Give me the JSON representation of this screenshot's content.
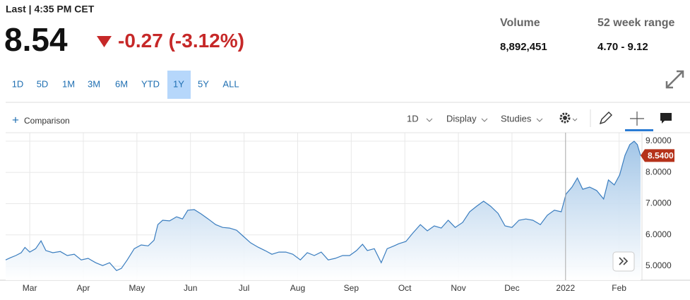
{
  "header": {
    "last_label": "Last | 4:35 PM CET",
    "price": "8.54",
    "change": "-0.27",
    "change_pct": "(-3.12%)",
    "volume_label": "Volume",
    "volume": "8,892,451",
    "range_label": "52 week range",
    "range": "4.70 - 9.12"
  },
  "toolbar": {
    "ranges": [
      "1D",
      "5D",
      "1M",
      "3M",
      "6M",
      "YTD",
      "1Y",
      "5Y",
      "ALL"
    ],
    "comparison": "Comparison",
    "interval": "1D",
    "display": "Display",
    "studies": "Studies"
  },
  "chart_data": {
    "type": "area",
    "color": "#3a7dbf",
    "x": [
      -0.45,
      -0.36,
      -0.26,
      -0.16,
      -0.09,
      0,
      0.11,
      0.21,
      0.3,
      0.43,
      0.57,
      0.7,
      0.83,
      0.96,
      1.09,
      1.23,
      1.36,
      1.49,
      1.62,
      1.71,
      1.82,
      1.95,
      2.08,
      2.21,
      2.32,
      2.39,
      2.48,
      2.61,
      2.74,
      2.85,
      2.95,
      3.07,
      3.2,
      3.33,
      3.47,
      3.6,
      3.73,
      3.86,
      3.99,
      4.12,
      4.26,
      4.39,
      4.52,
      4.65,
      4.78,
      4.91,
      5.05,
      5.18,
      5.31,
      5.44,
      5.57,
      5.7,
      5.84,
      5.97,
      6.1,
      6.21,
      6.3,
      6.43,
      6.56,
      6.67,
      6.8,
      6.89,
      7.02,
      7.15,
      7.29,
      7.42,
      7.55,
      7.68,
      7.81,
      7.94,
      8.08,
      8.21,
      8.34,
      8.47,
      8.6,
      8.74,
      8.87,
      9.0,
      9.13,
      9.26,
      9.39,
      9.53,
      9.66,
      9.79,
      9.92,
      10.01,
      10.12,
      10.22,
      10.32,
      10.45,
      10.58,
      10.71,
      10.8,
      10.91,
      11.01,
      11.11,
      11.2,
      11.28,
      11.34,
      11.4
    ],
    "values": [
      5.2,
      5.27,
      5.34,
      5.43,
      5.6,
      5.45,
      5.56,
      5.81,
      5.5,
      5.43,
      5.47,
      5.34,
      5.38,
      5.2,
      5.25,
      5.11,
      5.02,
      5.11,
      4.86,
      4.93,
      5.2,
      5.56,
      5.68,
      5.65,
      5.83,
      6.33,
      6.47,
      6.45,
      6.58,
      6.51,
      6.79,
      6.81,
      6.67,
      6.51,
      6.33,
      6.24,
      6.22,
      6.15,
      5.95,
      5.75,
      5.61,
      5.5,
      5.38,
      5.45,
      5.45,
      5.38,
      5.2,
      5.43,
      5.34,
      5.45,
      5.2,
      5.25,
      5.34,
      5.34,
      5.5,
      5.7,
      5.5,
      5.56,
      5.11,
      5.56,
      5.65,
      5.72,
      5.79,
      6.06,
      6.33,
      6.13,
      6.29,
      6.22,
      6.47,
      6.24,
      6.4,
      6.74,
      6.92,
      7.08,
      6.92,
      6.69,
      6.29,
      6.24,
      6.47,
      6.51,
      6.47,
      6.33,
      6.63,
      6.79,
      6.74,
      7.31,
      7.53,
      7.82,
      7.46,
      7.53,
      7.42,
      7.15,
      7.76,
      7.6,
      7.92,
      8.55,
      8.89,
      9.0,
      8.89,
      8.54
    ],
    "xlim": [
      -0.45,
      11.4
    ],
    "ylim": [
      4.55,
      9.27
    ],
    "xticks": [
      {
        "value": 0,
        "label": "Mar"
      },
      {
        "value": 1,
        "label": "Apr"
      },
      {
        "value": 2,
        "label": "May"
      },
      {
        "value": 3,
        "label": "Jun"
      },
      {
        "value": 4,
        "label": "Jul"
      },
      {
        "value": 5,
        "label": "Aug"
      },
      {
        "value": 6,
        "label": "Sep"
      },
      {
        "value": 7,
        "label": "Oct"
      },
      {
        "value": 8,
        "label": "Nov"
      },
      {
        "value": 9,
        "label": "Dec"
      },
      {
        "value": 10,
        "label": "2022"
      },
      {
        "value": 11,
        "label": "Feb"
      }
    ],
    "yticks": [
      {
        "value": 5,
        "label": "5.0000"
      },
      {
        "value": 6,
        "label": "6.0000"
      },
      {
        "value": 7,
        "label": "7.0000"
      },
      {
        "value": 8,
        "label": "8.0000"
      },
      {
        "value": 9,
        "label": "9.0000"
      }
    ],
    "last_value": {
      "value": 8.54,
      "label": "8.5400",
      "color": "#b5321a"
    },
    "grid": true
  }
}
